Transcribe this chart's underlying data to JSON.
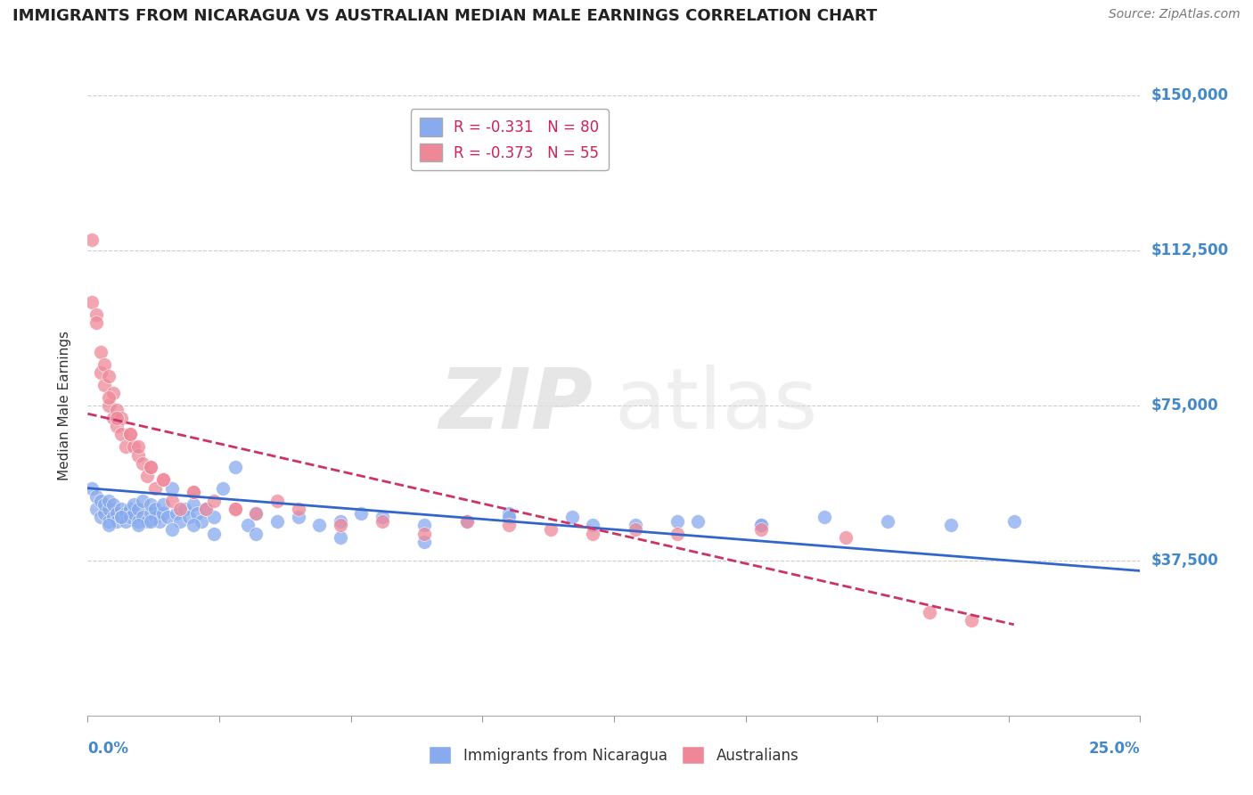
{
  "title": "IMMIGRANTS FROM NICARAGUA VS AUSTRALIAN MEDIAN MALE EARNINGS CORRELATION CHART",
  "source": "Source: ZipAtlas.com",
  "ylabel": "Median Male Earnings",
  "xlim": [
    0.0,
    0.25
  ],
  "ylim": [
    0,
    150000
  ],
  "yticks": [
    0,
    37500,
    75000,
    112500,
    150000
  ],
  "ytick_labels": [
    "",
    "$37,500",
    "$75,000",
    "$112,500",
    "$150,000"
  ],
  "blue_color": "#88aaee",
  "pink_color": "#ee8899",
  "blue_trend_color": "#3366cc",
  "pink_trend_color": "#cc3366",
  "grid_color": "#cccccc",
  "axis_color": "#4488cc",
  "blue_trend": [
    0.0,
    55000,
    0.25,
    35000
  ],
  "pink_trend": [
    0.0,
    73000,
    0.22,
    22000
  ],
  "legend_upper": [
    "R = -0.331   N = 80",
    "R = -0.373   N = 55"
  ],
  "legend_bottom": [
    "Immigrants from Nicaragua",
    "Australians"
  ],
  "blue_x": [
    0.001,
    0.002,
    0.002,
    0.003,
    0.003,
    0.004,
    0.004,
    0.005,
    0.005,
    0.005,
    0.006,
    0.006,
    0.007,
    0.007,
    0.008,
    0.008,
    0.009,
    0.009,
    0.01,
    0.01,
    0.011,
    0.011,
    0.012,
    0.012,
    0.013,
    0.013,
    0.014,
    0.015,
    0.015,
    0.016,
    0.016,
    0.017,
    0.018,
    0.018,
    0.019,
    0.02,
    0.021,
    0.022,
    0.023,
    0.024,
    0.025,
    0.026,
    0.027,
    0.028,
    0.03,
    0.032,
    0.035,
    0.038,
    0.04,
    0.045,
    0.05,
    0.055,
    0.06,
    0.065,
    0.07,
    0.08,
    0.09,
    0.1,
    0.115,
    0.13,
    0.145,
    0.16,
    0.175,
    0.19,
    0.205,
    0.22,
    0.005,
    0.008,
    0.012,
    0.015,
    0.02,
    0.025,
    0.03,
    0.04,
    0.06,
    0.08,
    0.1,
    0.12,
    0.14,
    0.16
  ],
  "blue_y": [
    55000,
    50000,
    53000,
    48000,
    52000,
    49000,
    51000,
    50000,
    47000,
    52000,
    48000,
    51000,
    49000,
    47000,
    50000,
    48000,
    49000,
    47000,
    50000,
    48000,
    49000,
    51000,
    47000,
    50000,
    48000,
    52000,
    47000,
    49000,
    51000,
    48000,
    50000,
    47000,
    49000,
    51000,
    48000,
    55000,
    49000,
    47000,
    50000,
    48000,
    51000,
    49000,
    47000,
    50000,
    48000,
    55000,
    60000,
    46000,
    49000,
    47000,
    48000,
    46000,
    47000,
    49000,
    48000,
    46000,
    47000,
    49000,
    48000,
    46000,
    47000,
    46000,
    48000,
    47000,
    46000,
    47000,
    46000,
    48000,
    46000,
    47000,
    45000,
    46000,
    44000,
    44000,
    43000,
    42000,
    48000,
    46000,
    47000,
    46000
  ],
  "pink_x": [
    0.001,
    0.001,
    0.002,
    0.002,
    0.003,
    0.003,
    0.004,
    0.004,
    0.005,
    0.005,
    0.006,
    0.006,
    0.007,
    0.007,
    0.008,
    0.008,
    0.009,
    0.01,
    0.011,
    0.012,
    0.013,
    0.014,
    0.015,
    0.016,
    0.018,
    0.02,
    0.022,
    0.025,
    0.028,
    0.03,
    0.035,
    0.04,
    0.045,
    0.05,
    0.06,
    0.07,
    0.08,
    0.09,
    0.1,
    0.11,
    0.12,
    0.13,
    0.14,
    0.16,
    0.18,
    0.2,
    0.21,
    0.005,
    0.007,
    0.01,
    0.012,
    0.015,
    0.018,
    0.025,
    0.035
  ],
  "pink_y": [
    115000,
    100000,
    97000,
    95000,
    88000,
    83000,
    85000,
    80000,
    82000,
    75000,
    78000,
    72000,
    74000,
    70000,
    72000,
    68000,
    65000,
    68000,
    65000,
    63000,
    61000,
    58000,
    60000,
    55000,
    57000,
    52000,
    50000,
    54000,
    50000,
    52000,
    50000,
    49000,
    52000,
    50000,
    46000,
    47000,
    44000,
    47000,
    46000,
    45000,
    44000,
    45000,
    44000,
    45000,
    43000,
    25000,
    23000,
    77000,
    72000,
    68000,
    65000,
    60000,
    57000,
    54000,
    50000
  ]
}
